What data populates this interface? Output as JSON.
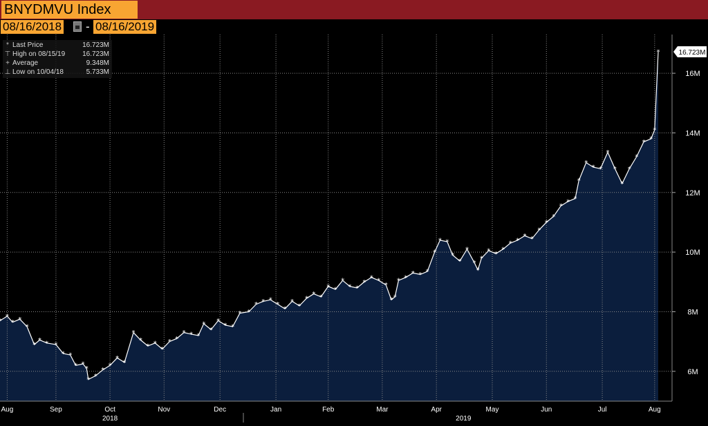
{
  "header": {
    "ticker": "BNYDMVU Index",
    "start_date": "08/16/2018",
    "separator": "-",
    "end_date": "08/16/2019",
    "calendar_icon": "calendar-icon"
  },
  "legend": {
    "items": [
      {
        "symbol": "*",
        "label": "Last Price",
        "value": "16.723M"
      },
      {
        "symbol": "⊤",
        "label": "High on 08/15/19",
        "value": "16.723M"
      },
      {
        "symbol": "+",
        "label": "Average",
        "value": "9.348M"
      },
      {
        "symbol": "⊥",
        "label": "Low on 10/04/18",
        "value": "5.733M"
      }
    ]
  },
  "last_price_tag": "16.723M",
  "colors": {
    "fill": "#0b1e3d",
    "line": "#ffffff",
    "grid": "#8a8a8a",
    "ticker_bg": "#f8a532",
    "title_bar": "#8a1a22"
  },
  "chart_data": {
    "type": "area",
    "title": "",
    "xlabel": "",
    "ylabel": "",
    "ylim": [
      5.0,
      17.3
    ],
    "y_ticks": [
      6,
      8,
      10,
      12,
      14,
      16
    ],
    "y_tick_labels": [
      "6M",
      "8M",
      "10M",
      "12M",
      "14M",
      "16M"
    ],
    "grid": true,
    "legend_placement": "top-left",
    "x_month_labels": [
      {
        "label": "Aug",
        "date": "2018-08-20"
      },
      {
        "label": "Sep",
        "date": "2018-09-16"
      },
      {
        "label": "Oct",
        "date": "2018-10-16"
      },
      {
        "label": "Nov",
        "date": "2018-11-15"
      },
      {
        "label": "Dec",
        "date": "2018-12-16"
      },
      {
        "label": "Jan",
        "date": "2019-01-16"
      },
      {
        "label": "Feb",
        "date": "2019-02-14"
      },
      {
        "label": "Mar",
        "date": "2019-03-16"
      },
      {
        "label": "Apr",
        "date": "2019-04-15"
      },
      {
        "label": "May",
        "date": "2019-05-16"
      },
      {
        "label": "Jun",
        "date": "2019-06-15"
      },
      {
        "label": "Jul",
        "date": "2019-07-16"
      },
      {
        "label": "Aug",
        "date": "2019-08-14"
      }
    ],
    "x_year_labels": [
      {
        "label": "2018",
        "date": "2018-10-16"
      },
      {
        "label": "2019",
        "date": "2019-04-30"
      }
    ],
    "x_range": [
      "2018-08-16",
      "2019-08-16"
    ],
    "series": [
      {
        "points": [
          [
            "2018-08-16",
            7.7
          ],
          [
            "2018-08-20",
            7.85
          ],
          [
            "2018-08-23",
            7.65
          ],
          [
            "2018-08-27",
            7.75
          ],
          [
            "2018-08-31",
            7.5
          ],
          [
            "2018-09-04",
            6.9
          ],
          [
            "2018-09-07",
            7.05
          ],
          [
            "2018-09-11",
            6.95
          ],
          [
            "2018-09-16",
            6.9
          ],
          [
            "2018-09-20",
            6.6
          ],
          [
            "2018-09-24",
            6.55
          ],
          [
            "2018-09-27",
            6.2
          ],
          [
            "2018-10-01",
            6.25
          ],
          [
            "2018-10-03",
            6.1
          ],
          [
            "2018-10-04",
            5.73
          ],
          [
            "2018-10-08",
            5.85
          ],
          [
            "2018-10-12",
            6.05
          ],
          [
            "2018-10-16",
            6.2
          ],
          [
            "2018-10-20",
            6.45
          ],
          [
            "2018-10-24",
            6.3
          ],
          [
            "2018-10-29",
            7.3
          ],
          [
            "2018-11-02",
            7.05
          ],
          [
            "2018-11-06",
            6.85
          ],
          [
            "2018-11-10",
            6.95
          ],
          [
            "2018-11-14",
            6.75
          ],
          [
            "2018-11-18",
            7.0
          ],
          [
            "2018-11-22",
            7.1
          ],
          [
            "2018-11-26",
            7.3
          ],
          [
            "2018-11-30",
            7.25
          ],
          [
            "2018-12-04",
            7.2
          ],
          [
            "2018-12-07",
            7.6
          ],
          [
            "2018-12-11",
            7.4
          ],
          [
            "2018-12-15",
            7.7
          ],
          [
            "2018-12-19",
            7.55
          ],
          [
            "2018-12-23",
            7.5
          ],
          [
            "2018-12-27",
            7.95
          ],
          [
            "2019-01-01",
            8.0
          ],
          [
            "2019-01-05",
            8.25
          ],
          [
            "2019-01-09",
            8.35
          ],
          [
            "2019-01-13",
            8.4
          ],
          [
            "2019-01-17",
            8.25
          ],
          [
            "2019-01-21",
            8.1
          ],
          [
            "2019-01-25",
            8.35
          ],
          [
            "2019-01-29",
            8.2
          ],
          [
            "2019-02-02",
            8.45
          ],
          [
            "2019-02-06",
            8.6
          ],
          [
            "2019-02-10",
            8.5
          ],
          [
            "2019-02-14",
            8.85
          ],
          [
            "2019-02-18",
            8.75
          ],
          [
            "2019-02-22",
            9.05
          ],
          [
            "2019-02-26",
            8.85
          ],
          [
            "2019-03-02",
            8.8
          ],
          [
            "2019-03-06",
            9.0
          ],
          [
            "2019-03-10",
            9.15
          ],
          [
            "2019-03-14",
            9.05
          ],
          [
            "2019-03-18",
            8.9
          ],
          [
            "2019-03-21",
            8.4
          ],
          [
            "2019-03-23",
            8.5
          ],
          [
            "2019-03-25",
            9.05
          ],
          [
            "2019-03-29",
            9.15
          ],
          [
            "2019-04-02",
            9.3
          ],
          [
            "2019-04-06",
            9.25
          ],
          [
            "2019-04-10",
            9.35
          ],
          [
            "2019-04-14",
            10.0
          ],
          [
            "2019-04-17",
            10.4
          ],
          [
            "2019-04-21",
            10.35
          ],
          [
            "2019-04-24",
            9.9
          ],
          [
            "2019-04-28",
            9.7
          ],
          [
            "2019-05-02",
            10.1
          ],
          [
            "2019-05-06",
            9.65
          ],
          [
            "2019-05-08",
            9.4
          ],
          [
            "2019-05-10",
            9.8
          ],
          [
            "2019-05-14",
            10.05
          ],
          [
            "2019-05-18",
            9.95
          ],
          [
            "2019-05-22",
            10.1
          ],
          [
            "2019-05-26",
            10.3
          ],
          [
            "2019-05-30",
            10.4
          ],
          [
            "2019-06-03",
            10.55
          ],
          [
            "2019-06-07",
            10.45
          ],
          [
            "2019-06-11",
            10.75
          ],
          [
            "2019-06-15",
            11.0
          ],
          [
            "2019-06-19",
            11.2
          ],
          [
            "2019-06-23",
            11.55
          ],
          [
            "2019-06-27",
            11.7
          ],
          [
            "2019-07-01",
            11.8
          ],
          [
            "2019-07-03",
            12.4
          ],
          [
            "2019-07-07",
            13.0
          ],
          [
            "2019-07-11",
            12.85
          ],
          [
            "2019-07-15",
            12.8
          ],
          [
            "2019-07-19",
            13.35
          ],
          [
            "2019-07-23",
            12.8
          ],
          [
            "2019-07-27",
            12.3
          ],
          [
            "2019-07-31",
            12.8
          ],
          [
            "2019-08-04",
            13.2
          ],
          [
            "2019-08-08",
            13.7
          ],
          [
            "2019-08-12",
            13.8
          ],
          [
            "2019-08-14",
            14.1
          ],
          [
            "2019-08-16",
            16.72
          ]
        ]
      }
    ]
  }
}
